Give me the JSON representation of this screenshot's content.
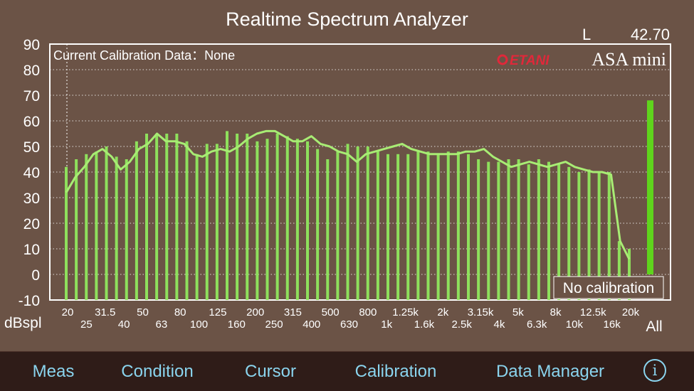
{
  "app": {
    "title": "Realtime Spectrum Analyzer",
    "channel": "L",
    "level": "42.70",
    "calibration_text": "Current Calibration Data：None",
    "brand_logo": "ETANI",
    "brand_product": "ASA mini",
    "no_calibration": "No calibration"
  },
  "colors": {
    "background": "#6b5346",
    "bar": "#8ee05c",
    "bar_bright": "#5fd41c",
    "line": "#a8ec74",
    "grid": "#ffffff",
    "tab_text": "#8ad4ee",
    "tabbar": "#2f1c18",
    "logo_red": "#e0283a"
  },
  "chart_data": {
    "type": "bar",
    "ylabel": "dBspl",
    "ylim": [
      -10,
      90
    ],
    "yticks": [
      "90",
      "80",
      "70",
      "60",
      "50",
      "40",
      "30",
      "20",
      "10",
      "0",
      "-10"
    ],
    "categories": [
      "20",
      "25",
      "31.5",
      "40",
      "50",
      "63",
      "80",
      "100",
      "125",
      "160",
      "200",
      "250",
      "315",
      "400",
      "500",
      "630",
      "800",
      "1k",
      "1.25k",
      "1.6k",
      "2k",
      "2.5k",
      "3.15k",
      "4k",
      "5k",
      "6.3k",
      "8k",
      "10k",
      "12.5k",
      "16k",
      "20k"
    ],
    "x_labels_top": [
      "20",
      "31.5",
      "50",
      "80",
      "125",
      "200",
      "315",
      "500",
      "800",
      "1.25k",
      "2k",
      "3.15k",
      "5k",
      "8k",
      "12.5k",
      "20k"
    ],
    "x_labels_bottom": [
      "25",
      "40",
      "63",
      "100",
      "160",
      "250",
      "400",
      "630",
      "1k",
      "1.6k",
      "2.5k",
      "4k",
      "6.3k",
      "10k",
      "16k"
    ],
    "band_values": [
      42,
      45,
      47,
      48,
      50,
      46,
      45,
      52,
      55,
      55,
      55,
      55,
      52,
      47,
      51,
      51,
      56,
      55,
      55,
      52,
      53,
      55,
      54,
      53,
      52,
      49,
      45,
      48,
      51,
      50,
      50,
      48,
      47,
      47,
      47,
      48,
      48,
      47,
      48,
      48,
      47,
      45,
      44,
      44,
      45,
      45,
      43,
      45,
      44,
      43,
      42,
      40,
      41,
      40,
      40,
      13,
      10
    ],
    "peak_curve": [
      32,
      38,
      42,
      47,
      49,
      46,
      41,
      44,
      49,
      51,
      55,
      52,
      52,
      51,
      47,
      46,
      48,
      49,
      48,
      50,
      53,
      55,
      56,
      56,
      54,
      52,
      52,
      54,
      51,
      50,
      48,
      47,
      44,
      47,
      48,
      49,
      50,
      51,
      49,
      48,
      47,
      47,
      47,
      47,
      48,
      48,
      49,
      46,
      44,
      42,
      43,
      44,
      43,
      42,
      43,
      44,
      42,
      41,
      40,
      40,
      39,
      13,
      6
    ],
    "overall": {
      "label": "All",
      "value": 68
    }
  },
  "tabs": [
    {
      "label": "Meas"
    },
    {
      "label": "Condition"
    },
    {
      "label": "Cursor"
    },
    {
      "label": "Calibration"
    },
    {
      "label": "Data Manager"
    }
  ],
  "info_glyph": "i"
}
